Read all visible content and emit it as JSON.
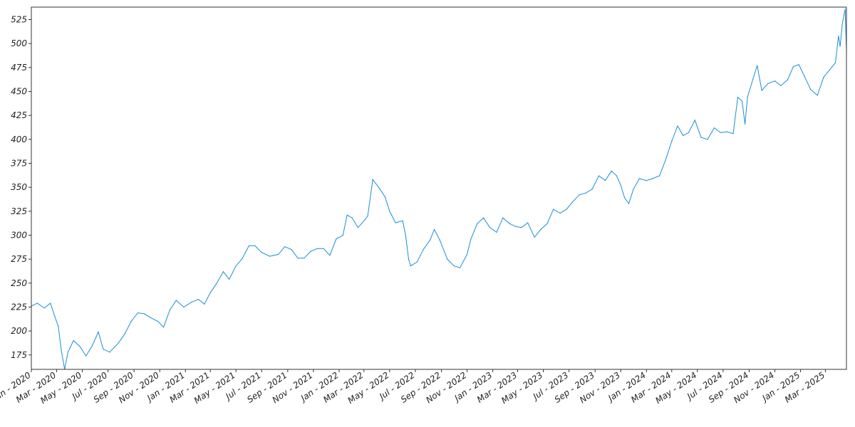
{
  "chart_data": {
    "type": "line",
    "title": "",
    "xlabel": "",
    "ylabel": "",
    "grid": false,
    "legend": "none",
    "x_range": [
      "2020-01-01",
      "2025-04-20"
    ],
    "ylim": [
      160,
      538
    ],
    "y_ticks": [
      175,
      200,
      225,
      250,
      275,
      300,
      325,
      350,
      375,
      400,
      425,
      450,
      475,
      500,
      525
    ],
    "x_ticks": [
      {
        "date": "2020-01-01",
        "label": "Jan - 2020"
      },
      {
        "date": "2020-03-01",
        "label": "Mar - 2020"
      },
      {
        "date": "2020-05-01",
        "label": "May - 2020"
      },
      {
        "date": "2020-07-01",
        "label": "Jul - 2020"
      },
      {
        "date": "2020-09-01",
        "label": "Sep - 2020"
      },
      {
        "date": "2020-11-01",
        "label": "Nov - 2020"
      },
      {
        "date": "2021-01-01",
        "label": "Jan - 2021"
      },
      {
        "date": "2021-03-01",
        "label": "Mar - 2021"
      },
      {
        "date": "2021-05-01",
        "label": "May - 2021"
      },
      {
        "date": "2021-07-01",
        "label": "Jul - 2021"
      },
      {
        "date": "2021-09-01",
        "label": "Sep - 2021"
      },
      {
        "date": "2021-11-01",
        "label": "Nov - 2021"
      },
      {
        "date": "2022-01-01",
        "label": "Jan - 2022"
      },
      {
        "date": "2022-03-01",
        "label": "Mar - 2022"
      },
      {
        "date": "2022-05-01",
        "label": "May - 2022"
      },
      {
        "date": "2022-07-01",
        "label": "Jul - 2022"
      },
      {
        "date": "2022-09-01",
        "label": "Sep - 2022"
      },
      {
        "date": "2022-11-01",
        "label": "Nov - 2022"
      },
      {
        "date": "2023-01-01",
        "label": "Jan - 2023"
      },
      {
        "date": "2023-03-01",
        "label": "Mar - 2023"
      },
      {
        "date": "2023-05-01",
        "label": "May - 2023"
      },
      {
        "date": "2023-07-01",
        "label": "Jul - 2023"
      },
      {
        "date": "2023-09-01",
        "label": "Sep - 2023"
      },
      {
        "date": "2023-11-01",
        "label": "Nov - 2023"
      },
      {
        "date": "2024-01-01",
        "label": "Jan - 2024"
      },
      {
        "date": "2024-03-01",
        "label": "Mar - 2024"
      },
      {
        "date": "2024-05-01",
        "label": "May - 2024"
      },
      {
        "date": "2024-07-01",
        "label": "Jul - 2024"
      },
      {
        "date": "2024-09-01",
        "label": "Sep - 2024"
      },
      {
        "date": "2024-11-01",
        "label": "Nov - 2024"
      },
      {
        "date": "2025-01-01",
        "label": "Jan - 2025"
      },
      {
        "date": "2025-03-01",
        "label": "Mar - 2025"
      }
    ],
    "series": [
      {
        "color": "#1a8fd6",
        "points": [
          [
            "2020-01-01",
            226
          ],
          [
            "2020-01-15",
            229
          ],
          [
            "2020-02-01",
            224
          ],
          [
            "2020-02-15",
            229
          ],
          [
            "2020-02-25",
            216
          ],
          [
            "2020-03-05",
            205
          ],
          [
            "2020-03-12",
            180
          ],
          [
            "2020-03-20",
            160
          ],
          [
            "2020-03-28",
            178
          ],
          [
            "2020-04-10",
            190
          ],
          [
            "2020-04-25",
            184
          ],
          [
            "2020-05-10",
            174
          ],
          [
            "2020-05-25",
            185
          ],
          [
            "2020-06-08",
            199
          ],
          [
            "2020-06-20",
            181
          ],
          [
            "2020-07-05",
            178
          ],
          [
            "2020-07-25",
            187
          ],
          [
            "2020-08-10",
            197
          ],
          [
            "2020-08-25",
            210
          ],
          [
            "2020-09-10",
            219
          ],
          [
            "2020-09-25",
            218
          ],
          [
            "2020-10-10",
            214
          ],
          [
            "2020-10-28",
            210
          ],
          [
            "2020-11-10",
            204
          ],
          [
            "2020-11-25",
            222
          ],
          [
            "2020-12-10",
            232
          ],
          [
            "2020-12-28",
            225
          ],
          [
            "2021-01-15",
            230
          ],
          [
            "2021-02-01",
            233
          ],
          [
            "2021-02-15",
            228
          ],
          [
            "2021-03-01",
            240
          ],
          [
            "2021-03-15",
            249
          ],
          [
            "2021-04-01",
            262
          ],
          [
            "2021-04-15",
            254
          ],
          [
            "2021-05-01",
            268
          ],
          [
            "2021-05-15",
            275
          ],
          [
            "2021-06-01",
            289
          ],
          [
            "2021-06-15",
            289
          ],
          [
            "2021-07-01",
            282
          ],
          [
            "2021-07-20",
            278
          ],
          [
            "2021-08-10",
            280
          ],
          [
            "2021-08-25",
            288
          ],
          [
            "2021-09-10",
            285
          ],
          [
            "2021-09-25",
            276
          ],
          [
            "2021-10-10",
            276
          ],
          [
            "2021-10-25",
            283
          ],
          [
            "2021-11-10",
            286
          ],
          [
            "2021-11-25",
            286
          ],
          [
            "2021-12-10",
            279
          ],
          [
            "2021-12-25",
            296
          ],
          [
            "2022-01-10",
            300
          ],
          [
            "2022-01-20",
            321
          ],
          [
            "2022-02-01",
            318
          ],
          [
            "2022-02-15",
            308
          ],
          [
            "2022-03-01",
            315
          ],
          [
            "2022-03-10",
            320
          ],
          [
            "2022-03-22",
            358
          ],
          [
            "2022-04-05",
            350
          ],
          [
            "2022-04-20",
            340
          ],
          [
            "2022-05-01",
            325
          ],
          [
            "2022-05-15",
            313
          ],
          [
            "2022-06-01",
            315
          ],
          [
            "2022-06-08",
            300
          ],
          [
            "2022-06-15",
            275
          ],
          [
            "2022-06-20",
            268
          ],
          [
            "2022-07-05",
            272
          ],
          [
            "2022-07-20",
            285
          ],
          [
            "2022-08-05",
            295
          ],
          [
            "2022-08-15",
            306
          ],
          [
            "2022-08-28",
            295
          ],
          [
            "2022-09-15",
            275
          ],
          [
            "2022-10-01",
            268
          ],
          [
            "2022-10-15",
            266
          ],
          [
            "2022-11-01",
            280
          ],
          [
            "2022-11-10",
            296
          ],
          [
            "2022-11-25",
            312
          ],
          [
            "2022-12-10",
            318
          ],
          [
            "2022-12-25",
            308
          ],
          [
            "2023-01-10",
            303
          ],
          [
            "2023-01-25",
            318
          ],
          [
            "2023-02-10",
            312
          ],
          [
            "2023-02-25",
            309
          ],
          [
            "2023-03-10",
            308
          ],
          [
            "2023-03-25",
            313
          ],
          [
            "2023-04-10",
            298
          ],
          [
            "2023-04-25",
            306
          ],
          [
            "2023-05-10",
            312
          ],
          [
            "2023-05-25",
            327
          ],
          [
            "2023-06-10",
            323
          ],
          [
            "2023-06-25",
            327
          ],
          [
            "2023-07-10",
            335
          ],
          [
            "2023-07-25",
            342
          ],
          [
            "2023-08-10",
            344
          ],
          [
            "2023-08-25",
            348
          ],
          [
            "2023-09-10",
            362
          ],
          [
            "2023-09-25",
            357
          ],
          [
            "2023-10-10",
            367
          ],
          [
            "2023-10-22",
            362
          ],
          [
            "2023-11-01",
            352
          ],
          [
            "2023-11-10",
            339
          ],
          [
            "2023-11-20",
            333
          ],
          [
            "2023-12-01",
            348
          ],
          [
            "2023-12-15",
            359
          ],
          [
            "2024-01-01",
            357
          ],
          [
            "2024-01-15",
            359
          ],
          [
            "2024-02-01",
            362
          ],
          [
            "2024-02-15",
            378
          ],
          [
            "2024-03-01",
            398
          ],
          [
            "2024-03-15",
            414
          ],
          [
            "2024-03-28",
            404
          ],
          [
            "2024-04-10",
            407
          ],
          [
            "2024-04-25",
            420
          ],
          [
            "2024-05-10",
            402
          ],
          [
            "2024-05-25",
            400
          ],
          [
            "2024-06-10",
            412
          ],
          [
            "2024-06-25",
            407
          ],
          [
            "2024-07-10",
            408
          ],
          [
            "2024-07-25",
            406
          ],
          [
            "2024-08-05",
            444
          ],
          [
            "2024-08-15",
            440
          ],
          [
            "2024-08-22",
            416
          ],
          [
            "2024-08-28",
            444
          ],
          [
            "2024-09-10",
            463
          ],
          [
            "2024-09-20",
            477
          ],
          [
            "2024-10-01",
            451
          ],
          [
            "2024-10-15",
            458
          ],
          [
            "2024-11-01",
            461
          ],
          [
            "2024-11-15",
            456
          ],
          [
            "2024-12-01",
            462
          ],
          [
            "2024-12-15",
            476
          ],
          [
            "2024-12-28",
            478
          ],
          [
            "2025-01-10",
            466
          ],
          [
            "2025-01-25",
            452
          ],
          [
            "2025-02-10",
            446
          ],
          [
            "2025-02-25",
            465
          ],
          [
            "2025-03-10",
            472
          ],
          [
            "2025-03-25",
            480
          ],
          [
            "2025-04-01",
            508
          ],
          [
            "2025-04-05",
            497
          ],
          [
            "2025-04-10",
            520
          ],
          [
            "2025-04-14",
            530
          ],
          [
            "2025-04-17",
            536
          ],
          [
            "2025-04-20",
            492
          ]
        ]
      }
    ]
  }
}
